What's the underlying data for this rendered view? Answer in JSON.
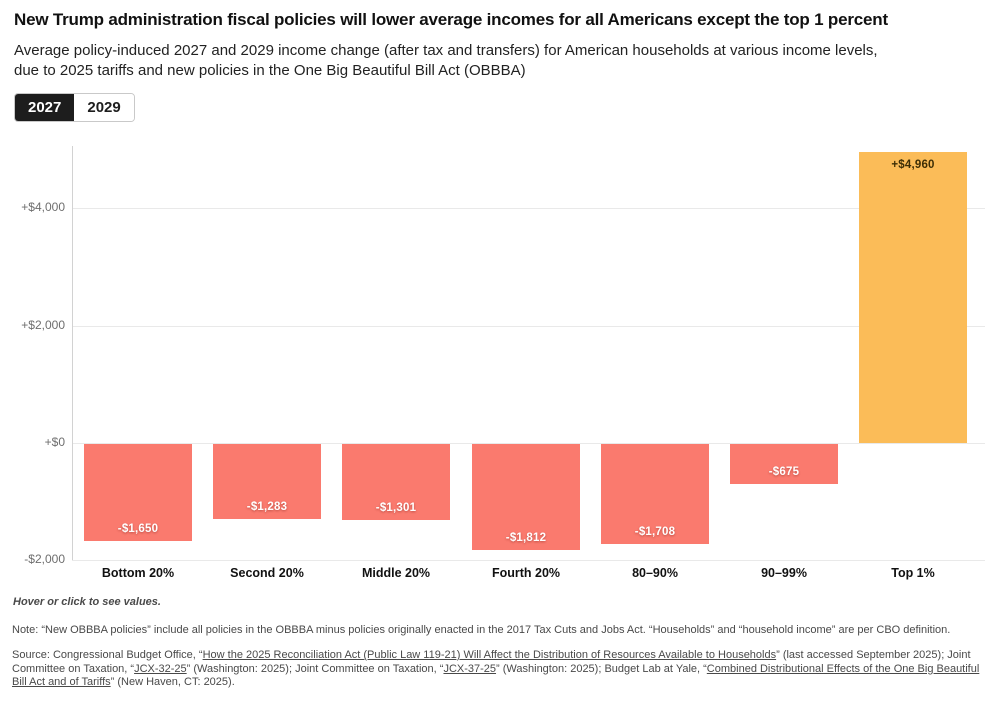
{
  "header": {
    "title": "New Trump administration fiscal policies will lower average incomes for all Americans except the top 1 percent",
    "subtitle_line1": "Average policy-induced 2027 and 2029 income change (after tax and transfers) for American households at various income levels,",
    "subtitle_line2": "due to 2025 tariffs and new policies in the One Big Beautiful Bill Act (OBBBA)"
  },
  "tabs": [
    {
      "label": "2027",
      "active": true
    },
    {
      "label": "2029",
      "active": false
    }
  ],
  "chart_data": {
    "type": "bar",
    "title": "New Trump administration fiscal policies will lower average incomes for all Americans except the top 1 percent",
    "subtitle": "Average policy-induced 2027 and 2029 income change (after tax and transfers) for American households at various income levels, due to 2025 tariffs and new policies in the One Big Beautiful Bill Act (OBBBA)",
    "xlabel": "",
    "ylabel": "",
    "categories": [
      "Bottom 20%",
      "Second 20%",
      "Middle 20%",
      "Fourth 20%",
      "80–90%",
      "90–99%",
      "Top 1%"
    ],
    "values": [
      -1650,
      -1283,
      -1301,
      -1812,
      -1708,
      -675,
      4960
    ],
    "value_labels": [
      "-$1,650",
      "-$1,283",
      "-$1,301",
      "-$1,812",
      "-$1,708",
      "-$675",
      "+$4,960"
    ],
    "y_ticks": [
      {
        "value": 4000,
        "label": "+$4,000"
      },
      {
        "value": 2000,
        "label": "+$2,000"
      },
      {
        "value": 0,
        "label": "+$0"
      },
      {
        "value": -2000,
        "label": "-$2,000"
      }
    ],
    "ylim": [
      -2050,
      5060
    ],
    "grid": true,
    "legend_position": "none",
    "colors": {
      "negative": "#FA7A6E",
      "positive": "#FBBC58"
    }
  },
  "footer": {
    "hover_hint": "Hover or click to see values.",
    "note": "Note: “New OBBBA policies” include all policies in the OBBBA minus policies originally enacted in the 2017 Tax Cuts and Jobs Act. “Households” and “household income” are per CBO definition.",
    "source": {
      "seg1": "Source: Congressional Budget Office, “",
      "link1": "How the 2025 Reconciliation Act (Public Law 119-21) Will Affect the Distribution of Resources Available to Households",
      "seg2": "” (last accessed September 2025); Joint Committee on Taxation, “",
      "link2": "JCX-32-25",
      "seg3": "” (Washington: 2025); Joint Committee on Taxation, “",
      "link3": "JCX-37-25",
      "seg4": "” (Washington: 2025); Budget Lab at Yale, “",
      "link4": "Combined Distributional Effects of the One Big Beautiful Bill Act and of Tariffs",
      "seg5": "” (New Haven, CT: 2025)."
    }
  }
}
